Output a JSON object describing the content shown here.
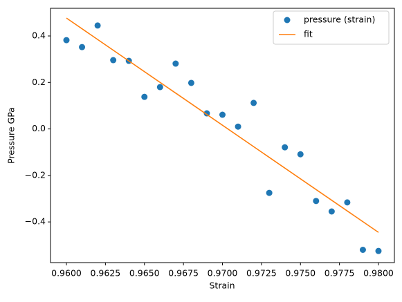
{
  "chart_data": {
    "type": "scatter",
    "xlabel": "Strain",
    "ylabel": "Pressure GPa",
    "xlim": [
      0.95898,
      0.98102
    ],
    "ylim": [
      -0.575,
      0.519
    ],
    "xticks": [
      {
        "value": 0.96,
        "label": "0.9600"
      },
      {
        "value": 0.9625,
        "label": "0.9625"
      },
      {
        "value": 0.965,
        "label": "0.9650"
      },
      {
        "value": 0.9675,
        "label": "0.9675"
      },
      {
        "value": 0.97,
        "label": "0.9700"
      },
      {
        "value": 0.9725,
        "label": "0.9725"
      },
      {
        "value": 0.975,
        "label": "0.9750"
      },
      {
        "value": 0.9775,
        "label": "0.9775"
      },
      {
        "value": 0.98,
        "label": "0.9800"
      }
    ],
    "yticks": [
      {
        "value": -0.4,
        "label": "−0.4"
      },
      {
        "value": -0.2,
        "label": "−0.2"
      },
      {
        "value": 0,
        "label": "0.0"
      },
      0.2,
      0.4
    ],
    "grid": false,
    "legend": "upper right",
    "series": [
      {
        "name": "pressure (strain)",
        "type": "scatter",
        "color": "#1f77b4",
        "x": [
          0.96,
          0.961,
          0.962,
          0.963,
          0.964,
          0.965,
          0.966,
          0.967,
          0.968,
          0.969,
          0.97,
          0.971,
          0.972,
          0.973,
          0.974,
          0.975,
          0.976,
          0.977,
          0.978,
          0.979,
          0.98
        ],
        "values": [
          0.382,
          0.352,
          0.445,
          0.296,
          0.293,
          0.138,
          0.18,
          0.281,
          0.198,
          0.067,
          0.061,
          0.01,
          0.112,
          -0.275,
          -0.079,
          -0.109,
          -0.31,
          -0.355,
          -0.316,
          -0.52,
          -0.525
        ]
      },
      {
        "name": "fit",
        "type": "line",
        "color": "#ff7f0e",
        "x": [
          0.96,
          0.98
        ],
        "values": [
          0.477,
          -0.445
        ]
      }
    ]
  }
}
